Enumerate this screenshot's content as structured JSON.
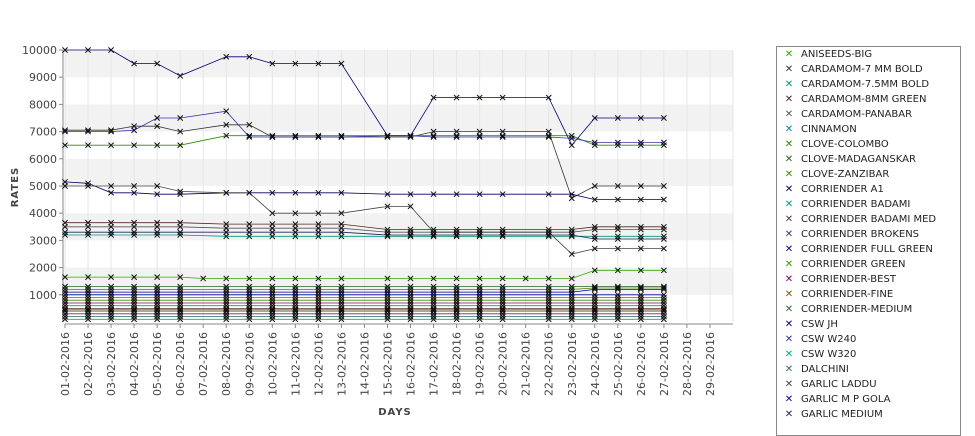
{
  "chart_data": {
    "type": "line",
    "xlabel": "DAYS",
    "ylabel": "RATES",
    "ylim": [
      0,
      10000
    ],
    "yticks": [
      1000,
      2000,
      3000,
      4000,
      5000,
      6000,
      7000,
      8000,
      9000,
      10000
    ],
    "grid": "alternating horizontal bands",
    "legend_position": "right",
    "categories": [
      "01-02-2016",
      "02-02-2016",
      "03-02-2016",
      "04-02-2016",
      "05-02-2016",
      "06-02-2016",
      "07-02-2016",
      "08-02-2016",
      "09-02-2016",
      "10-02-2016",
      "11-02-2016",
      "12-02-2016",
      "13-02-2016",
      "14-02-2016",
      "15-02-2016",
      "16-02-2016",
      "17-02-2016",
      "18-02-2016",
      "19-02-2016",
      "20-02-2016",
      "21-02-2016",
      "22-02-2016",
      "23-02-2016",
      "24-02-2016",
      "25-02-2016",
      "26-02-2016",
      "27-02-2016",
      "28-02-2016",
      "29-02-2016"
    ],
    "series": [
      {
        "name": "ANISEEDS-BIG",
        "color": "#33aa00",
        "values": [
          1650,
          1650,
          1650,
          1650,
          1650,
          1650,
          1600,
          1600,
          1600,
          1600,
          1600,
          1600,
          1600,
          null,
          1600,
          1600,
          1600,
          1600,
          1600,
          1600,
          1600,
          1600,
          1600,
          1900,
          1900,
          1900,
          1900,
          null,
          null
        ]
      },
      {
        "name": "CARDAMOM-7 MM BOLD",
        "color": "#333333",
        "values": [
          7050,
          7050,
          7050,
          7200,
          7200,
          7000,
          null,
          7250,
          7250,
          6800,
          6800,
          6800,
          6800,
          null,
          6800,
          6800,
          7000,
          7000,
          7000,
          7000,
          null,
          7000,
          4550,
          5000,
          5000,
          5000,
          5000,
          null,
          null
        ]
      },
      {
        "name": "CARDAMOM-7.5MM BOLD",
        "color": "#009977",
        "values": [
          3200,
          3200,
          3200,
          3200,
          3200,
          3200,
          null,
          3150,
          3150,
          3150,
          3150,
          3150,
          3150,
          null,
          3150,
          3150,
          3150,
          3150,
          3150,
          3150,
          null,
          3150,
          3150,
          3150,
          3150,
          3150,
          3150,
          null,
          null
        ]
      },
      {
        "name": "CARDAMOM-8MM GREEN",
        "color": "#552222",
        "values": [
          3650,
          3650,
          3650,
          3650,
          3650,
          3650,
          null,
          3600,
          3600,
          3600,
          3600,
          3600,
          3600,
          null,
          3400,
          3400,
          3400,
          3400,
          3400,
          3400,
          null,
          3400,
          3400,
          3500,
          3500,
          3500,
          3500,
          null,
          null
        ]
      },
      {
        "name": "CARDAMOM-PANABAR",
        "color": "#555555",
        "values": [
          3500,
          3500,
          3500,
          3500,
          3500,
          3500,
          null,
          3450,
          3450,
          3450,
          3450,
          3450,
          3450,
          null,
          3300,
          3300,
          3300,
          3300,
          3300,
          3300,
          null,
          3300,
          3300,
          3400,
          3400,
          3400,
          3400,
          null,
          null
        ]
      },
      {
        "name": "CINNAMON",
        "color": "#008888",
        "values": [
          900,
          900,
          900,
          900,
          900,
          900,
          null,
          900,
          900,
          900,
          900,
          900,
          900,
          null,
          900,
          900,
          900,
          900,
          900,
          900,
          null,
          900,
          900,
          900,
          900,
          900,
          900,
          null,
          null
        ]
      },
      {
        "name": "CLOVE-COLOMBO",
        "color": "#338800",
        "values": [
          6500,
          6500,
          6500,
          6500,
          6500,
          6500,
          null,
          6850,
          6850,
          6850,
          6850,
          6850,
          6850,
          null,
          6850,
          6850,
          6850,
          6850,
          6850,
          6850,
          null,
          6850,
          6850,
          6500,
          6500,
          6500,
          6500,
          null,
          null
        ]
      },
      {
        "name": "CLOVE-MADAGANSKAR",
        "color": "#226622",
        "values": [
          1300,
          1300,
          1300,
          1300,
          1300,
          1300,
          null,
          1300,
          1300,
          1300,
          1300,
          1300,
          1300,
          null,
          1300,
          1300,
          1300,
          1300,
          1300,
          1300,
          null,
          1300,
          1300,
          1300,
          1300,
          1300,
          1300,
          null,
          null
        ]
      },
      {
        "name": "CLOVE-ZANZIBAR",
        "color": "#448800",
        "values": [
          1200,
          1200,
          1200,
          1200,
          1200,
          1200,
          null,
          1200,
          1200,
          1200,
          1200,
          1200,
          1200,
          null,
          1200,
          1200,
          1200,
          1200,
          1200,
          1200,
          null,
          1200,
          1200,
          1250,
          1250,
          1250,
          1250,
          null,
          null
        ]
      },
      {
        "name": "CORRIENDER A1",
        "color": "#000066",
        "values": [
          5150,
          5100,
          4750,
          4750,
          4700,
          4700,
          null,
          4750,
          4750,
          4750,
          4750,
          4750,
          4750,
          null,
          4700,
          4700,
          4700,
          4700,
          4700,
          4700,
          null,
          4700,
          4700,
          4500,
          4500,
          4500,
          4500,
          null,
          null
        ]
      },
      {
        "name": "CORRIENDER BADAMI",
        "color": "#009999",
        "values": [
          600,
          600,
          600,
          600,
          600,
          600,
          null,
          600,
          600,
          600,
          600,
          600,
          600,
          null,
          600,
          600,
          600,
          600,
          600,
          600,
          null,
          600,
          600,
          600,
          600,
          600,
          600,
          null,
          null
        ]
      },
      {
        "name": "CORRIENDER BADAMI MED",
        "color": "#663333",
        "values": [
          500,
          500,
          500,
          500,
          500,
          500,
          null,
          500,
          500,
          500,
          500,
          500,
          500,
          null,
          500,
          500,
          500,
          500,
          500,
          500,
          null,
          500,
          500,
          500,
          500,
          500,
          500,
          null,
          null
        ]
      },
      {
        "name": "CORRIENDER BROKENS",
        "color": "#553366",
        "values": [
          300,
          300,
          300,
          300,
          300,
          300,
          null,
          300,
          300,
          300,
          300,
          300,
          300,
          null,
          300,
          300,
          300,
          300,
          300,
          300,
          null,
          300,
          300,
          300,
          300,
          300,
          300,
          null,
          null
        ]
      },
      {
        "name": "CORRIENDER FULL GREEN",
        "color": "#000088",
        "values": [
          1000,
          1000,
          1000,
          1000,
          1000,
          1000,
          null,
          1000,
          1000,
          1000,
          1000,
          1000,
          1000,
          null,
          1000,
          1000,
          1000,
          1000,
          1000,
          1000,
          null,
          1000,
          1000,
          1000,
          1000,
          1000,
          1000,
          null,
          null
        ]
      },
      {
        "name": "CORRIENDER GREEN",
        "color": "#339900",
        "values": [
          800,
          800,
          800,
          800,
          800,
          800,
          null,
          800,
          800,
          800,
          800,
          800,
          800,
          null,
          800,
          800,
          800,
          800,
          800,
          800,
          null,
          800,
          800,
          800,
          800,
          800,
          800,
          null,
          null
        ]
      },
      {
        "name": "CORRIENDER-BEST",
        "color": "#880066",
        "values": [
          700,
          700,
          700,
          700,
          700,
          700,
          null,
          700,
          700,
          700,
          700,
          700,
          700,
          null,
          700,
          700,
          700,
          700,
          700,
          700,
          null,
          700,
          700,
          700,
          700,
          700,
          700,
          null,
          null
        ]
      },
      {
        "name": "CORRIENDER-FINE",
        "color": "#885500",
        "values": [
          450,
          450,
          450,
          450,
          450,
          450,
          null,
          450,
          450,
          450,
          450,
          450,
          450,
          null,
          450,
          450,
          450,
          450,
          450,
          450,
          null,
          450,
          450,
          450,
          450,
          450,
          450,
          null,
          null
        ]
      },
      {
        "name": "CORRIENDER-MEDIUM",
        "color": "#336633",
        "values": [
          400,
          400,
          400,
          400,
          400,
          400,
          null,
          400,
          400,
          400,
          400,
          400,
          400,
          null,
          400,
          400,
          400,
          400,
          400,
          400,
          null,
          400,
          400,
          400,
          400,
          400,
          400,
          null,
          null
        ]
      },
      {
        "name": "CSW JH",
        "color": "#000077",
        "values": [
          10000,
          10000,
          10000,
          9500,
          9500,
          9050,
          null,
          9750,
          9750,
          9500,
          9500,
          9500,
          9500,
          null,
          6850,
          6850,
          8250,
          8250,
          8250,
          8250,
          null,
          8250,
          6500,
          7500,
          7500,
          7500,
          7500,
          null,
          null
        ]
      },
      {
        "name": "CSW W240",
        "color": "#3333aa",
        "values": [
          7000,
          7000,
          7000,
          7050,
          7500,
          7500,
          null,
          7750,
          6800,
          6800,
          6800,
          6800,
          6800,
          null,
          6850,
          6850,
          6800,
          6800,
          6800,
          6800,
          null,
          6800,
          6750,
          6600,
          6600,
          6600,
          6600,
          null,
          null
        ]
      },
      {
        "name": "CSW W320",
        "color": "#00aa88",
        "values": [
          100,
          100,
          100,
          100,
          100,
          100,
          null,
          100,
          100,
          100,
          100,
          100,
          100,
          null,
          100,
          100,
          100,
          100,
          100,
          100,
          null,
          100,
          100,
          100,
          100,
          100,
          100,
          null,
          null
        ]
      },
      {
        "name": "DALCHINI",
        "color": "#336666",
        "values": [
          200,
          200,
          200,
          200,
          200,
          200,
          null,
          200,
          200,
          200,
          200,
          200,
          200,
          null,
          200,
          200,
          200,
          200,
          200,
          200,
          null,
          200,
          200,
          200,
          200,
          200,
          200,
          null,
          null
        ]
      },
      {
        "name": "GARLIC LADDU",
        "color": "#444444",
        "values": [
          5000,
          5000,
          5000,
          5000,
          5000,
          4800,
          null,
          4750,
          4750,
          4000,
          4000,
          4000,
          4000,
          null,
          4250,
          4250,
          3300,
          3300,
          3300,
          3300,
          null,
          3300,
          2500,
          2700,
          2700,
          2700,
          2700,
          null,
          null
        ]
      },
      {
        "name": "GARLIC M P GOLA",
        "color": "#0000aa",
        "values": [
          1100,
          1100,
          1100,
          1100,
          1100,
          1100,
          null,
          1100,
          1100,
          1100,
          1100,
          1100,
          1100,
          null,
          1100,
          1100,
          1100,
          1100,
          1100,
          1100,
          null,
          1100,
          1100,
          1200,
          1200,
          1200,
          1200,
          null,
          null
        ]
      },
      {
        "name": "GARLIC MEDIUM",
        "color": "#222266",
        "values": [
          3300,
          3300,
          3300,
          3300,
          3300,
          3300,
          null,
          3300,
          3300,
          3300,
          3300,
          3300,
          3300,
          null,
          3200,
          3200,
          3200,
          3200,
          3200,
          3200,
          null,
          3200,
          3200,
          3050,
          3050,
          3050,
          3050,
          null,
          null
        ]
      }
    ]
  }
}
